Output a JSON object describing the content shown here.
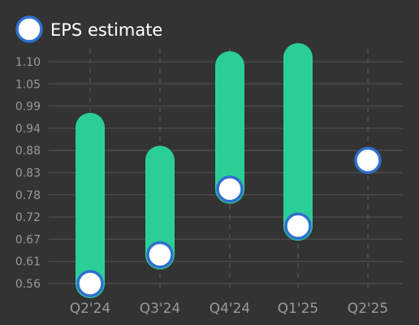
{
  "chart_data": {
    "type": "bar",
    "subtype": "range-bar-with-markers",
    "legend": {
      "label": "EPS estimate",
      "position": "top-left"
    },
    "categories": [
      "Q2'24",
      "Q3'24",
      "Q4'24",
      "Q1'25",
      "Q2'25"
    ],
    "yticks": [
      "0.56",
      "0.61",
      "0.67",
      "0.72",
      "0.78",
      "0.83",
      "0.88",
      "0.94",
      "0.99",
      "1.05",
      "1.10"
    ],
    "ylim": [
      0.56,
      1.1
    ],
    "grid": {
      "horizontal": true,
      "vertical_dashed": true
    },
    "series": [
      {
        "kind": "range",
        "low": [
          0.56,
          0.63,
          0.79,
          0.7,
          null
        ],
        "high": [
          0.94,
          0.86,
          1.09,
          1.11,
          null
        ]
      },
      {
        "name": "EPS estimate",
        "kind": "marker",
        "values": [
          0.56,
          0.63,
          0.79,
          0.7,
          0.86
        ]
      }
    ],
    "colors": {
      "background": "#333333",
      "bar": "#2bcf96",
      "marker_fill": "#ffffff",
      "marker_stroke": "#2f6fd0",
      "grid": "#4a4a4a",
      "axis_text": "#9a9a9a",
      "legend_text": "#ffffff"
    }
  }
}
